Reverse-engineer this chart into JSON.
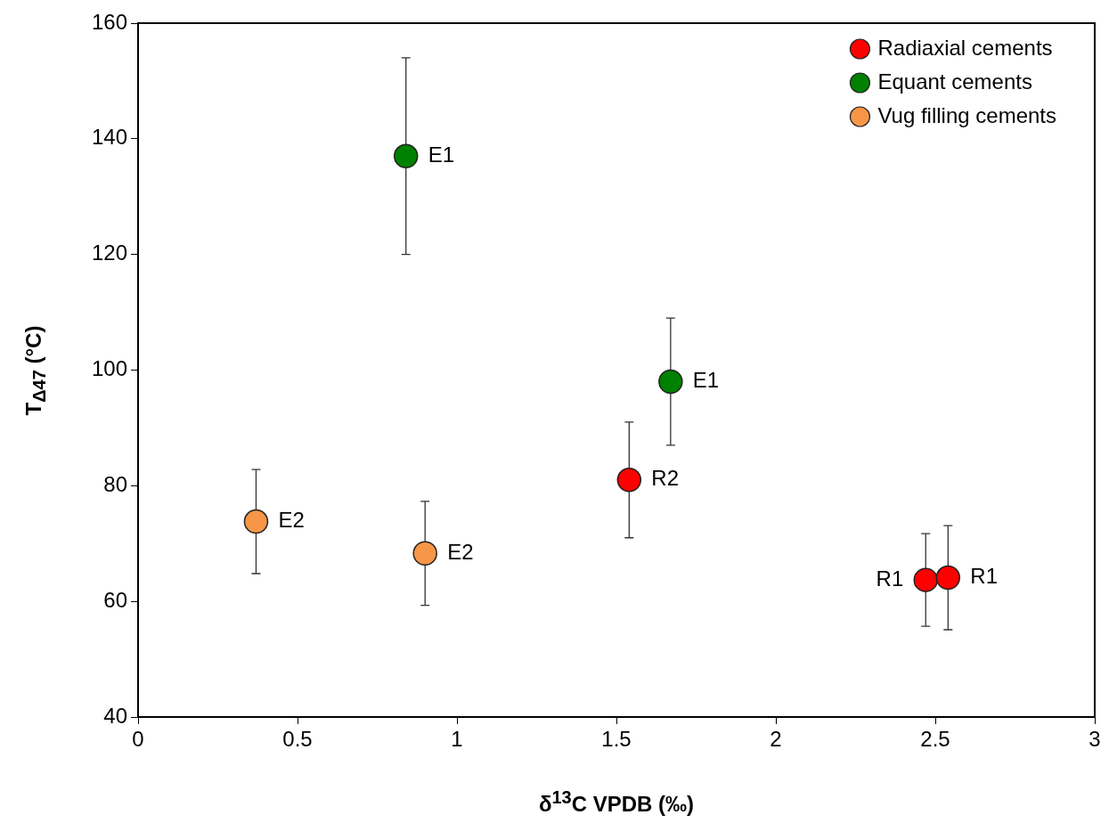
{
  "chart_data": {
    "type": "scatter",
    "xlabel": "δ$^{13}$C VPDB (‰)",
    "ylabel": "T$_{Δ47}$ (°C)",
    "xlim": [
      0,
      3
    ],
    "xticks": [
      0,
      0.5,
      1,
      1.5,
      2,
      2.5,
      3
    ],
    "ylim": [
      40,
      160
    ],
    "yticks": [
      40,
      60,
      80,
      100,
      120,
      140,
      160
    ],
    "grid": false,
    "legend": "top right",
    "marker": "circle",
    "series": [
      {
        "name": "Radiaxial cements",
        "color": "#ff0000",
        "x": [
          1.54,
          2.47,
          2.54
        ],
        "values": [
          81,
          63.7,
          64.1
        ],
        "errors": [
          10,
          8,
          9
        ]
      },
      {
        "name": "Equant cements",
        "color": "#008000",
        "x": [
          0.84,
          1.67
        ],
        "values": [
          137,
          98
        ],
        "errors": [
          17,
          11
        ]
      },
      {
        "name": "Vug filling cements",
        "color": "#f79646",
        "x": [
          0.37,
          0.9
        ],
        "values": [
          73.8,
          68.3
        ],
        "errors": [
          9,
          9
        ]
      }
    ],
    "annotations": [
      {
        "text": "E1",
        "x": 0.84,
        "y": 137
      },
      {
        "text": "E1",
        "x": 1.67,
        "y": 98
      },
      {
        "text": "R2",
        "x": 1.54,
        "y": 81
      },
      {
        "text": "E2",
        "x": 0.37,
        "y": 73.8
      },
      {
        "text": "E2",
        "x": 0.9,
        "y": 68.3
      },
      {
        "text": "R1",
        "x": 2.47,
        "y": 63.7
      },
      {
        "text": "R1",
        "x": 2.54,
        "y": 64.1
      }
    ]
  }
}
